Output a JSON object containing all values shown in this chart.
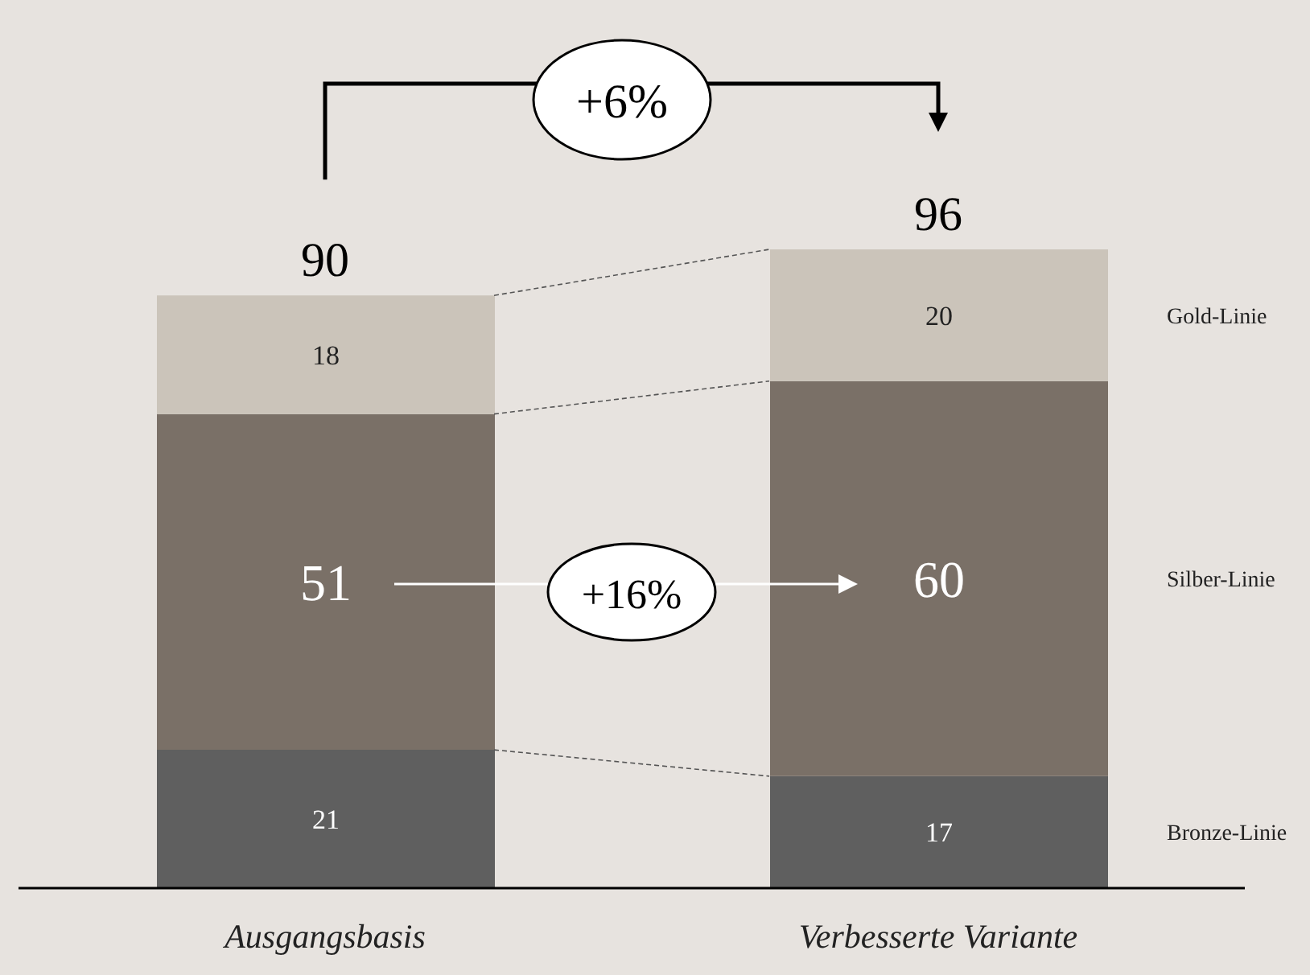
{
  "chart_data": {
    "type": "bar",
    "stacked": true,
    "categories": [
      "Ausgangsbasis",
      "Verbesserte Variante"
    ],
    "series": [
      {
        "name": "Bronze-Linie",
        "color": "#5f5f5f",
        "values": [
          21,
          17
        ]
      },
      {
        "name": "Silber-Linie",
        "color": "#7a7067",
        "values": [
          51,
          60
        ]
      },
      {
        "name": "Gold-Linie",
        "color": "#cbc4ba",
        "values": [
          18,
          20
        ]
      }
    ],
    "data_labels": true,
    "totals": [
      "90",
      "96"
    ],
    "annotations": [
      "+6%",
      "+16%"
    ]
  }
}
